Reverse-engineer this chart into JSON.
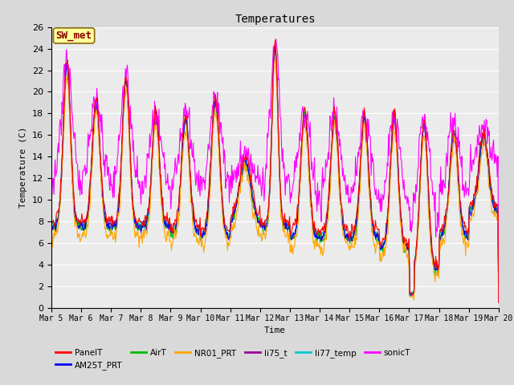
{
  "title": "Temperatures",
  "xlabel": "Time",
  "ylabel": "Temperature (C)",
  "ylim": [
    0,
    26
  ],
  "yticks": [
    0,
    2,
    4,
    6,
    8,
    10,
    12,
    14,
    16,
    18,
    20,
    22,
    24,
    26
  ],
  "annotation": "SW_met",
  "annotation_color": "#8B0000",
  "annotation_bg": "#FFFF99",
  "series": {
    "PanelT": {
      "color": "#FF0000",
      "lw": 0.8
    },
    "AM25T_PRT": {
      "color": "#0000FF",
      "lw": 0.8
    },
    "AirT": {
      "color": "#00BB00",
      "lw": 0.8
    },
    "NR01_PRT": {
      "color": "#FFA500",
      "lw": 0.8
    },
    "li75_t": {
      "color": "#990099",
      "lw": 0.8
    },
    "li77_temp": {
      "color": "#00CCCC",
      "lw": 0.8
    },
    "sonicT": {
      "color": "#FF00FF",
      "lw": 0.8
    }
  },
  "bg_color": "#D9D9D9",
  "plot_bg": "#EBEBEB",
  "grid_color": "#FFFFFF",
  "xtick_labels": [
    "Mar 5",
    "Mar 6",
    "Mar 7",
    "Mar 8",
    "Mar 9",
    "Mar 10",
    "Mar 11",
    "Mar 12",
    "Mar 13",
    "Mar 14",
    "Mar 15",
    "Mar 16",
    "Mar 17",
    "Mar 18",
    "Mar 19",
    "Mar 20"
  ]
}
